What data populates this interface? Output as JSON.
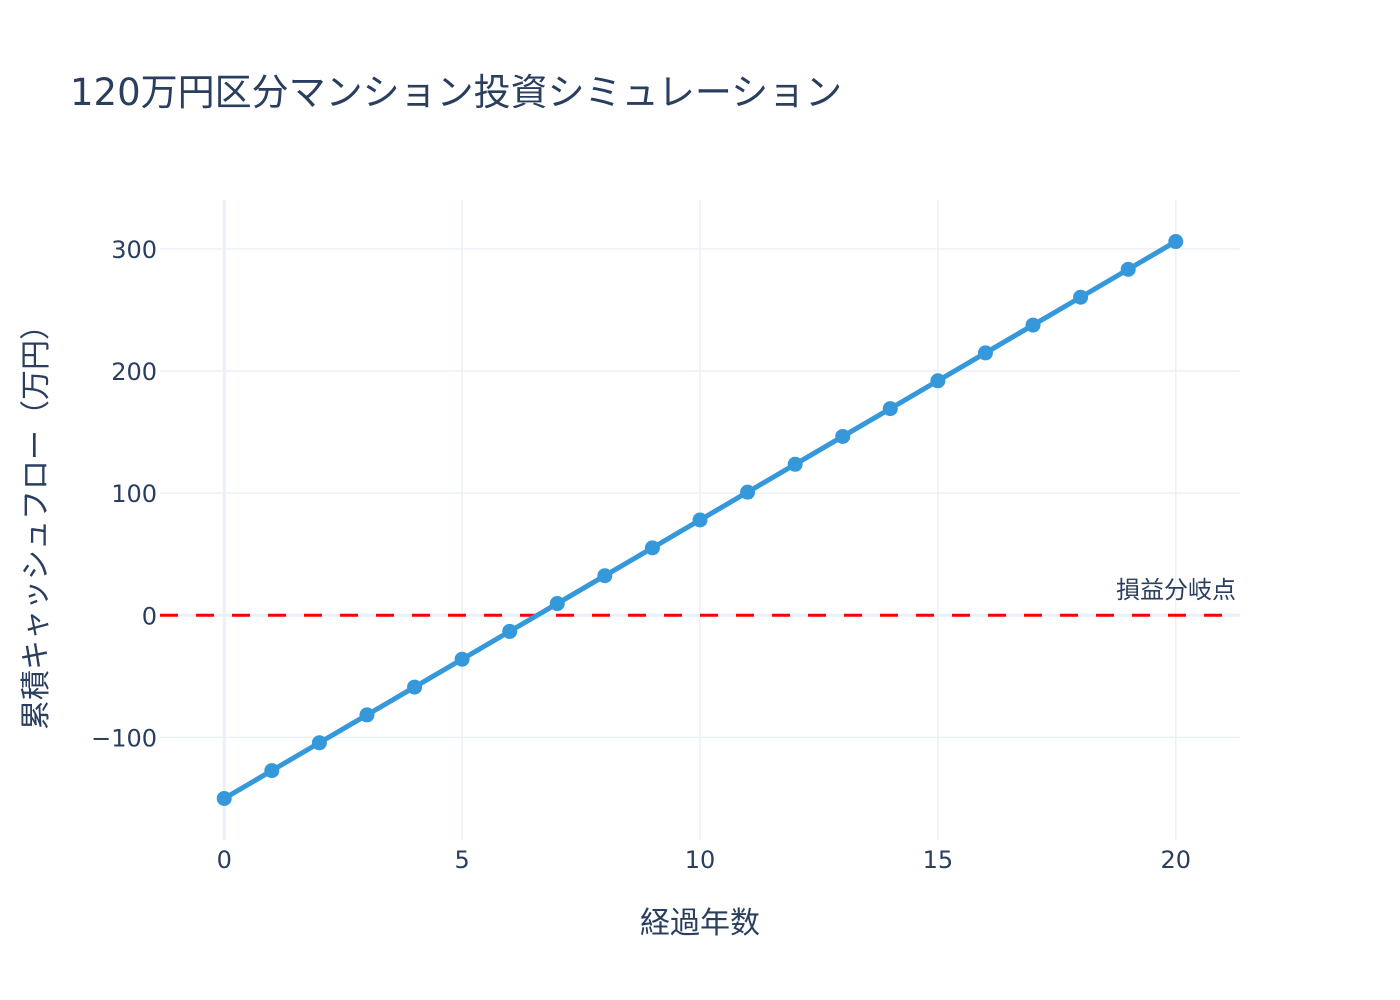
{
  "title": "120万円区分マンション投資シミュレーション",
  "colors": {
    "line": "#3498db",
    "reference_line": "#ff0000",
    "grid": "#ebf0f8",
    "text": "#2a3f5f"
  },
  "annotation": {
    "text": "損益分岐点"
  },
  "chart_data": {
    "type": "line",
    "title": "120万円区分マンション投資シミュレーション",
    "xlabel": "経過年数",
    "ylabel": "累積キャッシュフロー（万円）",
    "x": [
      0,
      1,
      2,
      3,
      4,
      5,
      6,
      7,
      8,
      9,
      10,
      11,
      12,
      13,
      14,
      15,
      16,
      17,
      18,
      19,
      20
    ],
    "series": [
      {
        "name": "累積キャッシュフロー",
        "values": [
          -150,
          -127.2,
          -104.4,
          -81.6,
          -58.8,
          -36,
          -13.2,
          9.6,
          32.4,
          55.2,
          78,
          100.8,
          123.6,
          146.4,
          169.2,
          192,
          214.8,
          237.6,
          260.4,
          283.2,
          306
        ],
        "mode": "lines+markers"
      }
    ],
    "reference_lines": [
      {
        "y": 0,
        "style": "dash",
        "color": "#ff0000",
        "label": "損益分岐点"
      }
    ],
    "xticks": [
      0,
      5,
      10,
      15,
      20
    ],
    "yticks": [
      -100,
      0,
      100,
      200,
      300
    ],
    "ytick_labels": [
      "−100",
      "0",
      "100",
      "200",
      "300"
    ],
    "xlim": [
      -1.35,
      21.35
    ],
    "ylim": [
      -184,
      340
    ],
    "grid": true,
    "legend": false
  }
}
